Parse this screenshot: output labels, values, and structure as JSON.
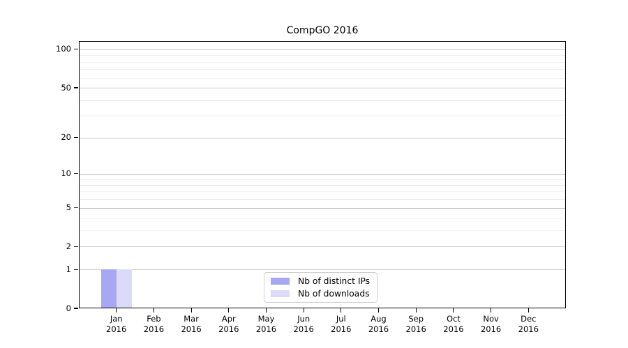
{
  "chart_data": {
    "type": "bar",
    "title": "CompGO 2016",
    "x_categories": [
      {
        "month": "Jan",
        "year": "2016"
      },
      {
        "month": "Feb",
        "year": "2016"
      },
      {
        "month": "Mar",
        "year": "2016"
      },
      {
        "month": "Apr",
        "year": "2016"
      },
      {
        "month": "May",
        "year": "2016"
      },
      {
        "month": "Jun",
        "year": "2016"
      },
      {
        "month": "Jul",
        "year": "2016"
      },
      {
        "month": "Aug",
        "year": "2016"
      },
      {
        "month": "Sep",
        "year": "2016"
      },
      {
        "month": "Oct",
        "year": "2016"
      },
      {
        "month": "Nov",
        "year": "2016"
      },
      {
        "month": "Dec",
        "year": "2016"
      }
    ],
    "series": [
      {
        "name": "Nb of distinct IPs",
        "color": "#a7a7f2",
        "values": [
          1,
          0,
          0,
          0,
          0,
          0,
          0,
          0,
          0,
          0,
          0,
          0
        ]
      },
      {
        "name": "Nb of downloads",
        "color": "#dbdbf9",
        "values": [
          1,
          0,
          0,
          0,
          0,
          0,
          0,
          0,
          0,
          0,
          0,
          0
        ]
      }
    ],
    "y_axis": {
      "scale": "log1p",
      "major_ticks": [
        0,
        1,
        2,
        5,
        10,
        20,
        50,
        100
      ],
      "minor_gridlines": [
        3,
        4,
        6,
        7,
        8,
        9,
        30,
        40,
        60,
        70,
        80,
        90
      ],
      "max": 116
    },
    "legend": {
      "position": "lower center",
      "labels": [
        "Nb of distinct IPs",
        "Nb of downloads"
      ]
    },
    "grid": true,
    "colors": {
      "major_grid": "#c9c9c9",
      "minor_grid": "#ededed",
      "axis": "#000000",
      "background": "#ffffff"
    }
  }
}
